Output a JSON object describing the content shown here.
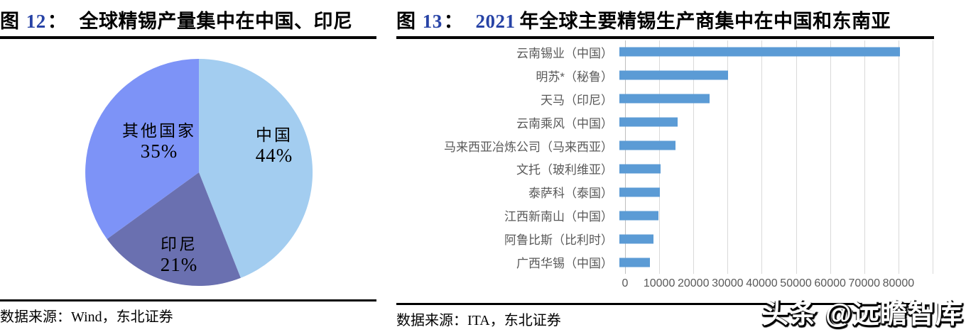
{
  "left_panel": {
    "fig_label": "图",
    "fig_number": "12",
    "colon": "：",
    "title": "全球精锡产量集中在中国、印尼",
    "source_label": "数据来源：",
    "source_text": "Wind，东北证券",
    "chart_data": {
      "type": "pie",
      "title": "全球精锡产量集中在中国、印尼",
      "unit": "percent",
      "direction": "clockwise",
      "start_angle": "top",
      "slices": [
        {
          "label": "中国",
          "value": 44,
          "display": "44%",
          "color": "#A3CDF0"
        },
        {
          "label": "印尼",
          "value": 21,
          "display": "21%",
          "color": "#6A70B0"
        },
        {
          "label": "其他国家",
          "value": 35,
          "display": "35%",
          "color": "#7D93F7"
        }
      ]
    }
  },
  "right_panel": {
    "fig_label": "图",
    "fig_number": "13",
    "colon": "：",
    "title_year": "2021",
    "title": "年全球主要精锡生产商集中在中国和东南亚",
    "source_label": "数据来源：",
    "source_text": "ITA，东北证券",
    "chart_data": {
      "type": "bar",
      "orientation": "horizontal",
      "title": "2021 年全球主要精锡生产商集中在中国和东南亚",
      "categories": [
        "云南锡业（中国）",
        "明苏*（秘鲁）",
        "天马（印尼）",
        "云南乘风（中国）",
        "马来西亚冶炼公司（马来西亚）",
        "文托（玻利维亚）",
        "泰萨科（泰国）",
        "江西新南山（中国）",
        "阿鲁比斯（比利时）",
        "广西华锡（中国）"
      ],
      "values": [
        82000,
        31700,
        26500,
        17000,
        16400,
        12000,
        11900,
        11500,
        9900,
        9000
      ],
      "xlim": [
        0,
        90000
      ],
      "x_ticks": [
        "0",
        "10000",
        "20000",
        "30000",
        "40000",
        "50000",
        "60000",
        "70000",
        "80000"
      ],
      "bar_color": "#5b9bd5",
      "grid": true,
      "label_color": "#595959"
    }
  },
  "watermark": {
    "text": "头条 @远瞻智库"
  },
  "colors": {
    "title_number_blue": "#2743A6",
    "bar_blue": "#5b9bd5",
    "gridline": "#d9d9d9",
    "axis_text": "#595959"
  }
}
